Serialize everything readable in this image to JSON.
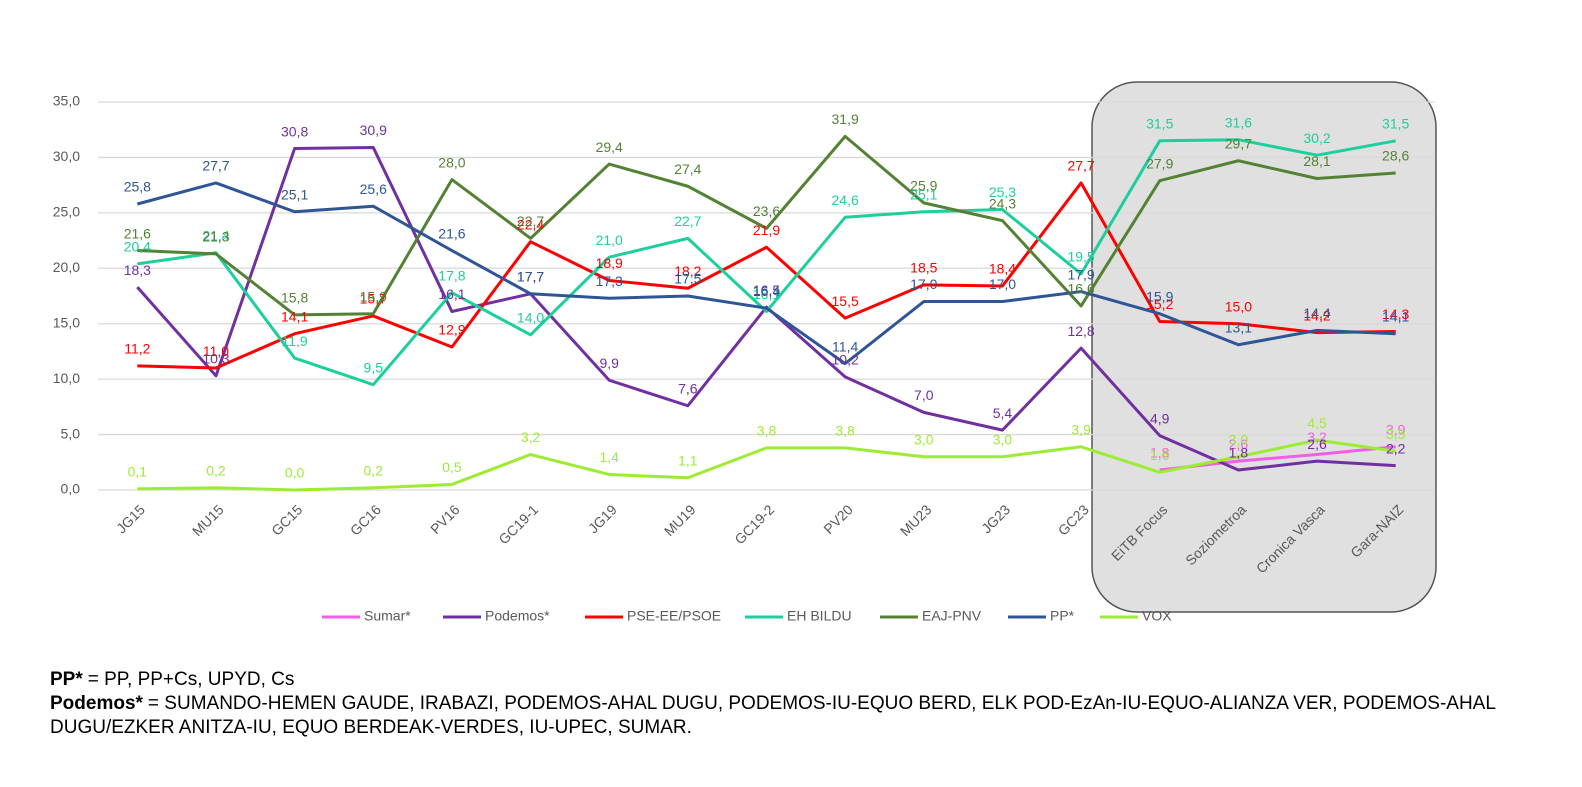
{
  "chart_data": {
    "type": "line",
    "categories": [
      "JG15",
      "MU15",
      "GC15",
      "GC16",
      "PV16",
      "GC19-1",
      "JG19",
      "MU19",
      "GC19-2",
      "PV20",
      "MU23",
      "JG23",
      "GC23",
      "EiTB Focus",
      "Soziometroa",
      "Cronica Vasca",
      "Gara-NAIZ"
    ],
    "ylim": [
      0,
      35
    ],
    "yticks": [
      {
        "value": 0,
        "label": "0,0"
      },
      {
        "value": 5,
        "label": "5,0"
      },
      {
        "value": 10,
        "label": "10,0"
      },
      {
        "value": 15,
        "label": "15,0"
      },
      {
        "value": 20,
        "label": "20,0"
      },
      {
        "value": 25,
        "label": "25,0"
      },
      {
        "value": 30,
        "label": "30,0"
      },
      {
        "value": 35,
        "label": "35,0"
      }
    ],
    "grid": true,
    "legend": "bottom",
    "series": [
      {
        "name": "Sumar*",
        "color": "#f25ee6",
        "values": [
          null,
          null,
          null,
          null,
          null,
          null,
          null,
          null,
          null,
          null,
          null,
          null,
          null,
          1.8,
          2.6,
          3.2,
          3.9
        ],
        "value_labels": [
          null,
          null,
          null,
          null,
          null,
          null,
          null,
          null,
          null,
          null,
          null,
          null,
          null,
          "1,8",
          "2,6",
          "3,2",
          "3,9"
        ]
      },
      {
        "name": "Podemos*",
        "color": "#7030a0",
        "values": [
          18.3,
          10.3,
          30.8,
          30.9,
          16.1,
          17.7,
          9.9,
          7.6,
          16.5,
          10.2,
          7.0,
          5.4,
          12.8,
          4.9,
          1.8,
          2.6,
          2.2
        ],
        "value_labels": [
          "18,3",
          "10,3",
          "30,8",
          "30,9",
          "16,1",
          "17,7",
          "9,9",
          "7,6",
          "16,5",
          "10,2",
          "7,0",
          "5,4",
          "12,8",
          "4,9",
          "1,8",
          "2,6",
          "2,2"
        ]
      },
      {
        "name": "PSE-EE/PSOE",
        "color": "#ff0000",
        "values": [
          11.2,
          11.0,
          14.1,
          15.7,
          12.9,
          22.4,
          18.9,
          18.2,
          21.9,
          15.5,
          18.5,
          18.4,
          27.7,
          15.2,
          15.0,
          14.2,
          14.3
        ],
        "value_labels": [
          "11,2",
          "11,0",
          "14,1",
          "15,7",
          "12,9",
          "22,4",
          "18,9",
          "18,2",
          "21,9",
          "15,5",
          "18,5",
          "18,4",
          "27,7",
          "15,2",
          "15,0",
          "14,2",
          "14,3"
        ]
      },
      {
        "name": "EH BILDU",
        "color": "#1ccf9c",
        "values": [
          20.4,
          21.4,
          11.9,
          9.5,
          17.8,
          14.0,
          21.0,
          22.7,
          16.1,
          24.6,
          25.1,
          25.3,
          19.5,
          31.5,
          31.6,
          30.2,
          31.5
        ],
        "value_labels": [
          "20,4",
          "21,4",
          "11,9",
          "9,5",
          "17,8",
          "14,0",
          "21,0",
          "22,7",
          "16,1",
          "24,6",
          "25,1",
          "25,3",
          "19,5",
          "31,5",
          "31,6",
          "30,2",
          "31,5"
        ]
      },
      {
        "name": "EAJ-PNV",
        "color": "#548235",
        "values": [
          21.6,
          21.3,
          15.8,
          15.9,
          28.0,
          22.7,
          29.4,
          27.4,
          23.6,
          31.9,
          25.9,
          24.3,
          16.6,
          27.9,
          29.7,
          28.1,
          28.6
        ],
        "value_labels": [
          "21,6",
          "21,3",
          "15,8",
          "15,9",
          "28,0",
          "22,7",
          "29,4",
          "27,4",
          "23,6",
          "31,9",
          "25,9",
          "24,3",
          "16,6",
          "27,9",
          "29,7",
          "28,1",
          "28,6"
        ]
      },
      {
        "name": "PP*",
        "color": "#2f5597",
        "values": [
          25.8,
          27.7,
          25.1,
          25.6,
          21.6,
          17.7,
          17.3,
          17.5,
          16.4,
          11.4,
          17.0,
          17.0,
          17.9,
          15.9,
          13.1,
          14.4,
          14.1
        ],
        "value_labels": [
          "25,8",
          "27,7",
          "25,1",
          "25,6",
          "21,6",
          "17,7",
          "17,3",
          "17,5",
          "16,4",
          "11,4",
          "17,0",
          "17,0",
          "17,9",
          "15,9",
          "13,1",
          "14,4",
          "14,1"
        ]
      },
      {
        "name": "VOX",
        "color": "#9eeb34",
        "values": [
          0.1,
          0.2,
          0.0,
          0.2,
          0.5,
          3.2,
          1.4,
          1.1,
          3.8,
          3.8,
          3.0,
          3.0,
          3.9,
          1.6,
          3.0,
          4.5,
          3.5
        ],
        "value_labels": [
          "0,1",
          "0,2",
          "0,0",
          "0,2",
          "0,5",
          "3,2",
          "1,4",
          "1,1",
          "3,8",
          "3,8",
          "3,0",
          "3,0",
          "3,9",
          "1,6",
          "3,0",
          "4,5",
          "3,5"
        ]
      }
    ]
  },
  "notes": [
    {
      "term": "PP*",
      "text": "= PP, PP+Cs, UPYD, Cs"
    },
    {
      "term": "Podemos*",
      "text": "= SUMANDO-HEMEN GAUDE, IRABAZI, PODEMOS-AHAL DUGU, PODEMOS-IU-EQUO BERD, ELK POD-EzAn-IU-EQUO-ALIANZA VER, PODEMOS-AHAL DUGU/EZKER ANITZA-IU, EQUO BERDEAK-VERDES, IU-UPEC, SUMAR."
    }
  ]
}
